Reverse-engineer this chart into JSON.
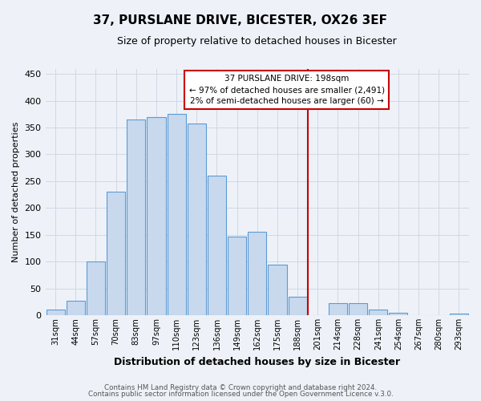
{
  "title": "37, PURSLANE DRIVE, BICESTER, OX26 3EF",
  "subtitle": "Size of property relative to detached houses in Bicester",
  "xlabel": "Distribution of detached houses by size in Bicester",
  "ylabel": "Number of detached properties",
  "bin_labels": [
    "31sqm",
    "44sqm",
    "57sqm",
    "70sqm",
    "83sqm",
    "97sqm",
    "110sqm",
    "123sqm",
    "136sqm",
    "149sqm",
    "162sqm",
    "175sqm",
    "188sqm",
    "201sqm",
    "214sqm",
    "228sqm",
    "241sqm",
    "254sqm",
    "267sqm",
    "280sqm",
    "293sqm"
  ],
  "bar_values": [
    10,
    27,
    100,
    230,
    365,
    370,
    375,
    358,
    260,
    147,
    155,
    95,
    35,
    0,
    22,
    22,
    10,
    5,
    0,
    0,
    3
  ],
  "bar_color": "#c8d9ee",
  "bar_edge_color": "#5b9bd5",
  "grid_color": "#d0d8e4",
  "vline_x_index": 13,
  "vline_color": "#cc0000",
  "annotation_line1": "37 PURSLANE DRIVE: 198sqm",
  "annotation_line2": "← 97% of detached houses are smaller (2,491)",
  "annotation_line3": "2% of semi-detached houses are larger (60) →",
  "annotation_box_edge": "#cc0000",
  "ylim": [
    0,
    460
  ],
  "yticks": [
    0,
    50,
    100,
    150,
    200,
    250,
    300,
    350,
    400,
    450
  ],
  "footer_line1": "Contains HM Land Registry data © Crown copyright and database right 2024.",
  "footer_line2": "Contains public sector information licensed under the Open Government Licence v.3.0.",
  "bg_color": "#eef2f8",
  "plot_bg_color": "#eef2f8"
}
